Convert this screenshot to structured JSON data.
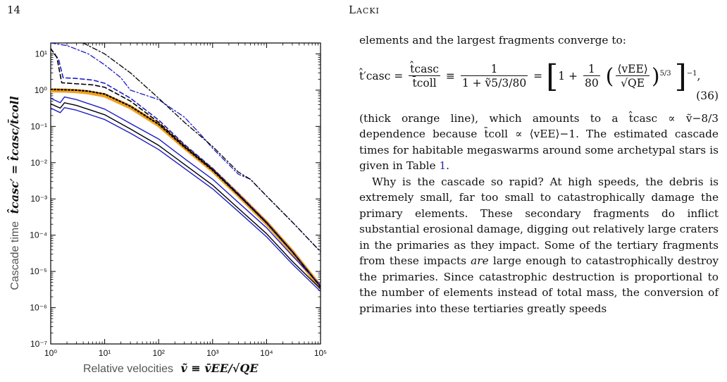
{
  "header": {
    "page_number": "14",
    "running_head": "Lacki"
  },
  "figure": {
    "y_axis_label_text": "Cascade time",
    "y_axis_label_math": "t̂casc′ = t̂casc/t̄coll",
    "x_axis_label_text": "Relative velocities",
    "x_axis_label_math": "ṽ ≡ v̄EE/√QE"
  },
  "chart_data": {
    "type": "line",
    "xscale": "log",
    "yscale": "log",
    "xlim": [
      1,
      100000
    ],
    "ylim": [
      1e-07,
      20
    ],
    "x_ticks": [
      1,
      10,
      100,
      1000,
      10000,
      100000
    ],
    "x_tick_labels": [
      "10⁰",
      "10¹",
      "10²",
      "10³",
      "10⁴",
      "10⁵"
    ],
    "y_ticks": [
      1e-07,
      1e-06,
      1e-05,
      0.0001,
      0.001,
      0.01,
      0.1,
      1,
      10
    ],
    "y_tick_labels": [
      "10⁻⁷",
      "10⁻⁶",
      "10⁻⁵",
      "10⁻⁴",
      "10⁻³",
      "10⁻²",
      "10⁻¹",
      "10⁰",
      "10¹"
    ],
    "grid": false,
    "legend": "none",
    "series": [
      {
        "style": "orange-thick",
        "color": "#f0a020",
        "width": 6,
        "dash": "",
        "points": [
          [
            1,
            0.99
          ],
          [
            2,
            0.97
          ],
          [
            3,
            0.94
          ],
          [
            5,
            0.87
          ],
          [
            10,
            0.72
          ],
          [
            30,
            0.34
          ],
          [
            100,
            0.11
          ],
          [
            300,
            0.0267
          ],
          [
            1000,
            0.00616
          ],
          [
            3000,
            0.00129
          ],
          [
            10000,
            0.000217
          ],
          [
            30000,
            3.46e-05
          ],
          [
            100000,
            3.7e-06
          ]
        ]
      },
      {
        "style": "black-dotted",
        "color": "#000000",
        "width": 2.2,
        "dash": "2,3",
        "points": [
          [
            1,
            1.05
          ],
          [
            2,
            1.02
          ],
          [
            3,
            1.0
          ],
          [
            5,
            0.94
          ],
          [
            10,
            0.78
          ],
          [
            30,
            0.36
          ],
          [
            100,
            0.115
          ],
          [
            300,
            0.027
          ],
          [
            1000,
            0.0062
          ],
          [
            3000,
            0.0013
          ],
          [
            10000,
            0.00022
          ],
          [
            30000,
            3.5e-05
          ],
          [
            100000,
            3.8e-06
          ]
        ]
      },
      {
        "style": "blue-solid-upper",
        "color": "#1c1cc8",
        "width": 1.4,
        "dash": "",
        "points": [
          [
            1,
            0.6
          ],
          [
            1.5,
            0.45
          ],
          [
            1.8,
            0.65
          ],
          [
            3,
            0.55
          ],
          [
            10,
            0.3
          ],
          [
            30,
            0.12
          ],
          [
            100,
            0.045
          ],
          [
            300,
            0.013
          ],
          [
            1000,
            0.0035
          ],
          [
            3000,
            0.0008
          ],
          [
            10000,
            0.00016
          ],
          [
            30000,
            2.7e-05
          ],
          [
            100000,
            4.2e-06
          ]
        ]
      },
      {
        "style": "black-solid",
        "color": "#000000",
        "width": 1.4,
        "dash": "",
        "points": [
          [
            1,
            0.42
          ],
          [
            1.5,
            0.32
          ],
          [
            1.8,
            0.45
          ],
          [
            3,
            0.38
          ],
          [
            10,
            0.21
          ],
          [
            30,
            0.085
          ],
          [
            100,
            0.03
          ],
          [
            300,
            0.009
          ],
          [
            1000,
            0.0024
          ],
          [
            3000,
            0.00055
          ],
          [
            10000,
            0.00011
          ],
          [
            30000,
            1.9e-05
          ],
          [
            100000,
            3.3e-06
          ]
        ]
      },
      {
        "style": "blue-solid-lower",
        "color": "#1c1cc8",
        "width": 1.4,
        "dash": "",
        "points": [
          [
            1,
            0.32
          ],
          [
            1.5,
            0.24
          ],
          [
            1.8,
            0.33
          ],
          [
            3,
            0.28
          ],
          [
            10,
            0.155
          ],
          [
            30,
            0.065
          ],
          [
            100,
            0.023
          ],
          [
            300,
            0.007
          ],
          [
            1000,
            0.0019
          ],
          [
            3000,
            0.00045
          ],
          [
            10000,
            9e-05
          ],
          [
            30000,
            1.6e-05
          ],
          [
            100000,
            2.8e-06
          ]
        ]
      },
      {
        "style": "blue-dashed",
        "color": "#1c1cc8",
        "width": 1.6,
        "dash": "6,4",
        "points": [
          [
            1,
            14
          ],
          [
            1.4,
            7
          ],
          [
            1.7,
            2.2
          ],
          [
            3,
            2.1
          ],
          [
            6,
            1.9
          ],
          [
            10,
            1.55
          ],
          [
            30,
            0.6
          ],
          [
            100,
            0.15
          ],
          [
            300,
            0.032
          ],
          [
            1000,
            0.007
          ],
          [
            3000,
            0.0014
          ],
          [
            10000,
            0.00023
          ],
          [
            30000,
            3.6e-05
          ],
          [
            100000,
            3.8e-06
          ]
        ]
      },
      {
        "style": "black-dashed",
        "color": "#000000",
        "width": 1.6,
        "dash": "6,4",
        "points": [
          [
            1,
            14
          ],
          [
            1.3,
            8
          ],
          [
            1.6,
            1.6
          ],
          [
            3,
            1.5
          ],
          [
            6,
            1.4
          ],
          [
            10,
            1.2
          ],
          [
            30,
            0.5
          ],
          [
            100,
            0.13
          ],
          [
            300,
            0.029
          ],
          [
            1000,
            0.0065
          ],
          [
            3000,
            0.0013
          ],
          [
            10000,
            0.00022
          ],
          [
            30000,
            3.5e-05
          ],
          [
            100000,
            3.7e-06
          ]
        ]
      },
      {
        "style": "blue-dashdot",
        "color": "#1c1cc8",
        "width": 1.3,
        "dash": "7,3,2,3",
        "points": [
          [
            1,
            20
          ],
          [
            2,
            17
          ],
          [
            5,
            10
          ],
          [
            10,
            5
          ],
          [
            20,
            2.2
          ],
          [
            30,
            1.0
          ],
          [
            100,
            0.55
          ],
          [
            300,
            0.18
          ],
          [
            600,
            0.06
          ],
          [
            1000,
            0.025
          ],
          [
            3000,
            0.0048
          ],
          [
            5000,
            0.0035
          ],
          [
            10000,
            0.0012
          ],
          [
            30000,
            0.00023
          ],
          [
            100000,
            3.5e-05
          ]
        ]
      },
      {
        "style": "black-dashdot",
        "color": "#000000",
        "width": 1.3,
        "dash": "7,3,2,3",
        "points": [
          [
            4,
            20
          ],
          [
            10,
            10
          ],
          [
            30,
            3
          ],
          [
            100,
            0.6
          ],
          [
            300,
            0.13
          ],
          [
            1000,
            0.028
          ],
          [
            3000,
            0.0055
          ],
          [
            5000,
            0.0035
          ],
          [
            10000,
            0.0012
          ],
          [
            30000,
            0.00023
          ],
          [
            100000,
            3.5e-05
          ]
        ]
      }
    ]
  },
  "text": {
    "lead": "elements and the largest fragments converge to:",
    "eq_lhs": "t̂′casc =",
    "eq_frac1_num": "t̂casc",
    "eq_frac1_den": "t̄coll",
    "eq_equiv": "≡",
    "eq_frac2_num": "1",
    "eq_frac2_den": "1 + ṽ5/3/80",
    "eq_eq": "=",
    "eq_bracket_inner_1": "1 +",
    "eq_frac3_num": "1",
    "eq_frac3_den": "80",
    "eq_frac4_num": "⟨vEE⟩",
    "eq_frac4_den": "√QE",
    "eq_power_inner": "5/3",
    "eq_power_outer": "−1",
    "eq_trailing": ",",
    "eq_number": "(36)",
    "para1": "(thick orange line), which amounts to a t̂casc ∝ ṽ−8/3 dependence because t̄coll ∝ ⟨vEE⟩−1. The estimated cascade times for habitable megaswarms around some archetypal stars is given in Table ",
    "para1_table_ref": "1",
    "para1_end": ".",
    "para2_a": "Why is the cascade so rapid? At high speeds, the debris is extremely small, far too small to catastrophically damage the primary elements. These secondary fragments do inflict substantial erosional damage, digging out relatively large craters in the primaries as they impact. Some of the tertiary fragments from these impacts ",
    "para2_em": "are",
    "para2_b": " large enough to catastrophically destroy the primaries. Since catastrophic destruction is proportional to the number of elements instead of total mass, the conversion of primaries into these tertiaries greatly speeds"
  }
}
